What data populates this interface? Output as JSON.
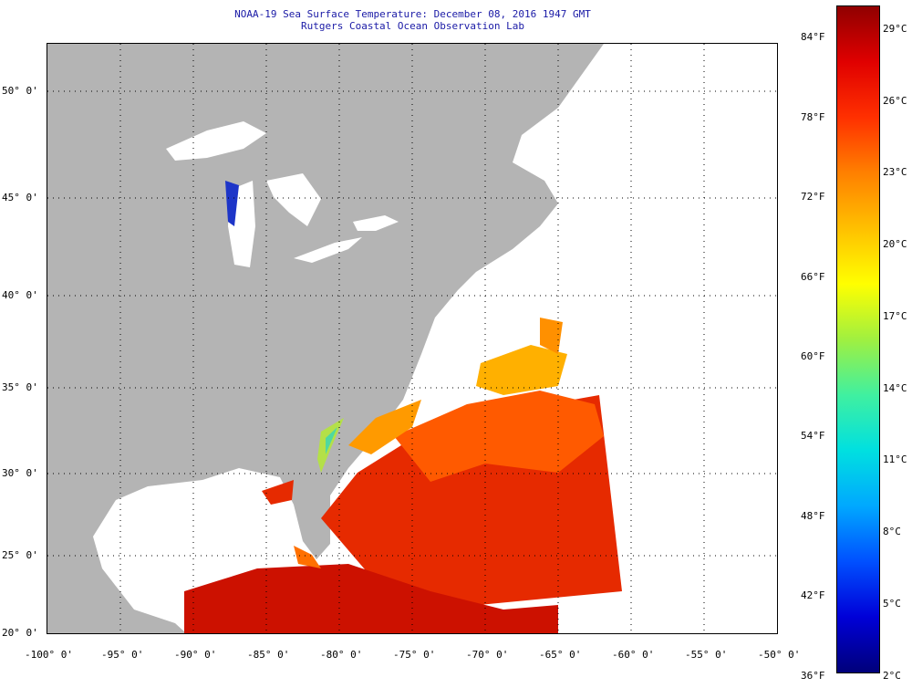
{
  "title": "NOAA-19 Sea Surface Temperature:  December 08, 2016 1947 GMT",
  "subtitle": "Rutgers Coastal Ocean Observation Lab",
  "map": {
    "lon_range": [
      -100,
      -50
    ],
    "lat_range": [
      20,
      52.5
    ],
    "lat_labels": [
      "50° 0'",
      "45° 0'",
      "40° 0'",
      "35° 0'",
      "30° 0'",
      "25° 0'",
      "20° 0'"
    ],
    "lon_labels": [
      "-100° 0'",
      "-95° 0'",
      "-90° 0'",
      "-85° 0'",
      "-80° 0'",
      "-75° 0'",
      "-70° 0'",
      "-65° 0'",
      "-60° 0'",
      "-55° 0'",
      "-50° 0'"
    ],
    "colors": {
      "land": "#b4b4b4",
      "no_data": "#ffffff",
      "grid": "#000000"
    }
  },
  "colorbar": {
    "fahrenheit_labels": [
      "84°F",
      "78°F",
      "72°F",
      "66°F",
      "60°F",
      "54°F",
      "48°F",
      "42°F",
      "36°F"
    ],
    "celsius_labels": [
      "29°C",
      "26°C",
      "23°C",
      "20°C",
      "17°C",
      "14°C",
      "11°C",
      "8°C",
      "5°C",
      "2°C"
    ],
    "colors": [
      "#00007a",
      "#0000d8",
      "#0050ff",
      "#00a8ff",
      "#00e0e0",
      "#40f0a0",
      "#a0f040",
      "#ffff00",
      "#ffc000",
      "#ff8000",
      "#ff3000",
      "#e00000",
      "#900000"
    ]
  }
}
